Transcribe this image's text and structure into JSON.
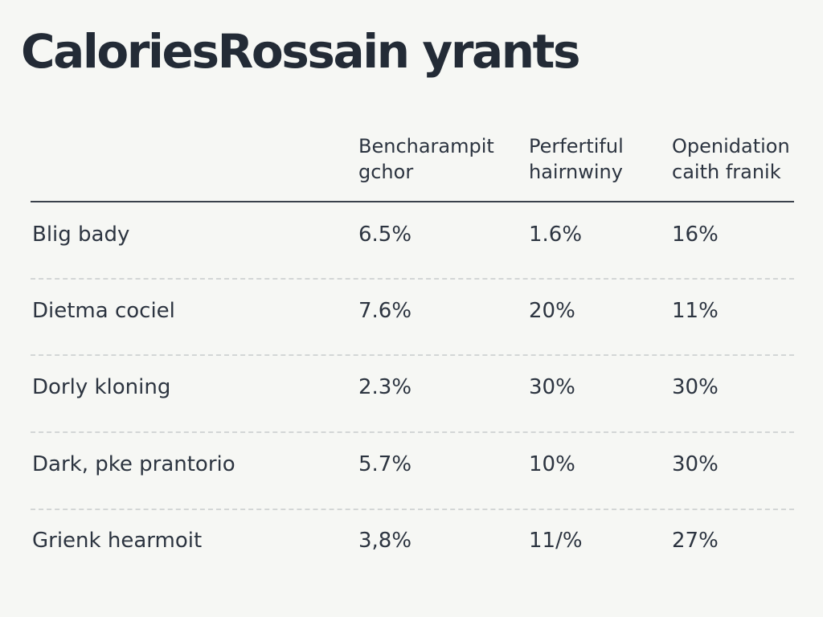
{
  "chart_data": {
    "type": "table",
    "title": "CaloriesRossain yrants",
    "columns": [
      {
        "line1": "Bencharampit",
        "line2": "gchor"
      },
      {
        "line1": "Perfertiful",
        "line2": "hairnwiny"
      },
      {
        "line1": "Openidation",
        "line2": "caith franik"
      }
    ],
    "rows": [
      {
        "label": "Blig bady",
        "values": [
          "6.5%",
          "1.6%",
          "16%"
        ]
      },
      {
        "label": "Dietma cociel",
        "values": [
          "7.6%",
          "20%",
          "11%"
        ]
      },
      {
        "label": "Dorly kloning",
        "values": [
          "2.3%",
          "30%",
          "30%"
        ]
      },
      {
        "label": "Dark, pke prantorio",
        "values": [
          "5.7%",
          "10%",
          "30%"
        ]
      },
      {
        "label": "Grienk hearmoit",
        "values": [
          "3,8%",
          "11/%",
          "27%"
        ]
      }
    ]
  }
}
